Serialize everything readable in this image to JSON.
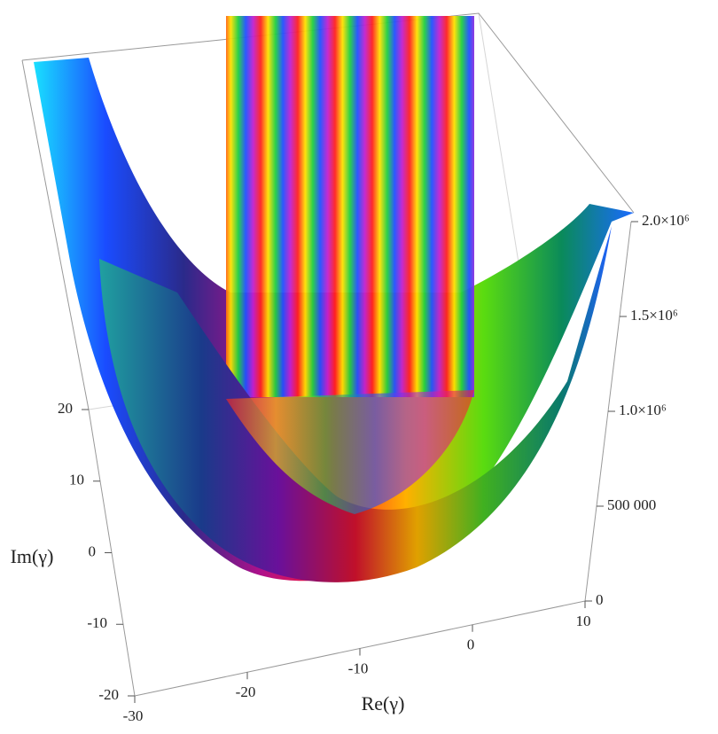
{
  "chart_data": {
    "type": "surface",
    "x_label": "Re(γ)",
    "y_label": "Im(γ)",
    "xlim": [
      -30,
      10
    ],
    "xticks": [
      -30,
      -20,
      -10,
      0,
      10
    ],
    "ylim": [
      -20,
      20
    ],
    "yticks": [
      -20,
      -10,
      0,
      10,
      20
    ],
    "zlim": [
      0,
      2000000
    ],
    "zticks": [
      0,
      {
        "value": 500000,
        "label": "500 000"
      },
      {
        "value": 1000000,
        "label": "1.0×10⁶"
      },
      {
        "value": 1500000,
        "label": "1.5×10⁶"
      },
      {
        "value": 2000000,
        "label": "2.0×10⁶"
      }
    ]
  }
}
